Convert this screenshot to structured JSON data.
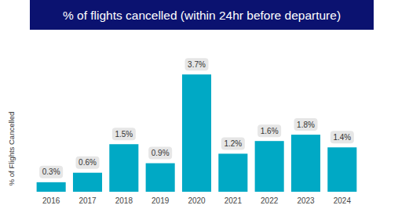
{
  "chart_data": {
    "type": "bar",
    "title": "% of flights cancelled (within 24hr before departure)",
    "y_label": "% of Flights Cancelled",
    "categories": [
      "2016",
      "2017",
      "2018",
      "2019",
      "2020",
      "2021",
      "2022",
      "2023",
      "2024"
    ],
    "values": [
      0.3,
      0.6,
      1.5,
      0.9,
      3.7,
      1.2,
      1.6,
      1.8,
      1.4
    ],
    "value_labels": [
      "0.3%",
      "0.6%",
      "1.5%",
      "0.9%",
      "3.7%",
      "1.2%",
      "1.6%",
      "1.8%",
      "1.4%"
    ],
    "color": "#00a9c5",
    "ylim": [
      0,
      4
    ],
    "grid": false,
    "data_labels": true,
    "tick_labels": "x"
  }
}
